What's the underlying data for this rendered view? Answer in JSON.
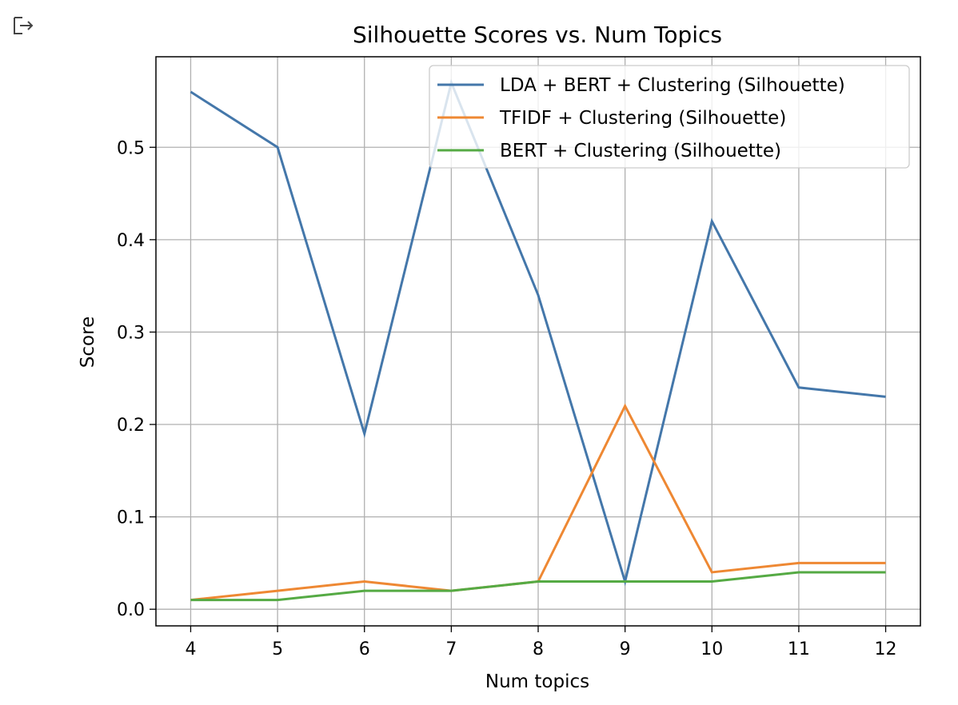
{
  "icons": {
    "output": "output-arrow-icon"
  },
  "chart_data": {
    "type": "line",
    "title": "Silhouette Scores vs. Num Topics",
    "xlabel": "Num topics",
    "ylabel": "Score",
    "x": [
      4,
      5,
      6,
      7,
      8,
      9,
      10,
      11,
      12
    ],
    "xticks": [
      "4",
      "5",
      "6",
      "7",
      "8",
      "9",
      "10",
      "11",
      "12"
    ],
    "yticks": [
      "0.0",
      "0.1",
      "0.2",
      "0.3",
      "0.4",
      "0.5"
    ],
    "ytick_values": [
      0.0,
      0.1,
      0.2,
      0.3,
      0.4,
      0.5
    ],
    "xlim": [
      3.6,
      12.4
    ],
    "ylim": [
      -0.018,
      0.598
    ],
    "grid": true,
    "legend_position": "top-right",
    "series": [
      {
        "name": "LDA + BERT + Clustering (Silhouette)",
        "color": "#4477aa",
        "values": [
          0.56,
          0.5,
          0.19,
          0.57,
          0.34,
          0.03,
          0.42,
          0.24,
          0.23
        ]
      },
      {
        "name": "TFIDF + Clustering (Silhouette)",
        "color": "#ee8833",
        "values": [
          0.01,
          0.02,
          0.03,
          0.02,
          0.03,
          0.22,
          0.04,
          0.05,
          0.05
        ]
      },
      {
        "name": "BERT + Clustering (Silhouette)",
        "color": "#55aa44",
        "values": [
          0.01,
          0.01,
          0.02,
          0.02,
          0.03,
          0.03,
          0.03,
          0.04,
          0.04
        ]
      }
    ]
  }
}
